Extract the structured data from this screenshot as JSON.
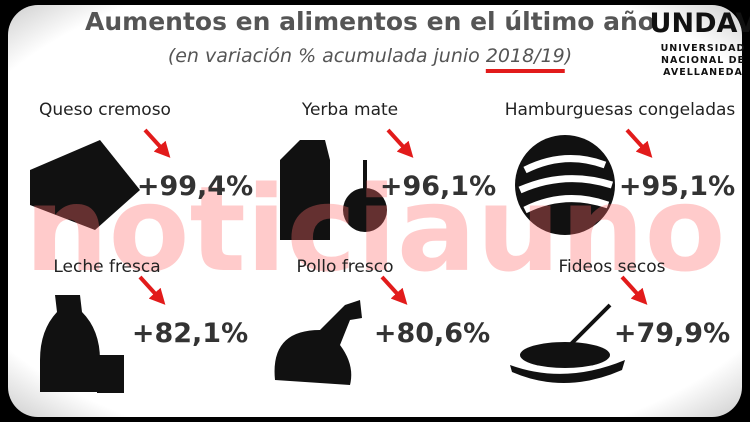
{
  "header": {
    "title": "Aumentos en alimentos en el último año",
    "subtitle": {
      "start": "(en variación % acumulada junio ",
      "highlight": "2018/19",
      "end": ")"
    }
  },
  "logo": {
    "mark": "UNDAV",
    "lines": [
      "UNIVERSIDAD",
      "NACIONAL DE",
      "AVELLANEDA"
    ]
  },
  "items": [
    {
      "label": "Queso cremoso",
      "value": "+99,4%"
    },
    {
      "label": "Yerba mate",
      "value": "+96,1%"
    },
    {
      "label": "Hamburguesas congeladas",
      "value": "+95,1%"
    },
    {
      "label": "Leche fresca",
      "value": "+82,1%"
    },
    {
      "label": "Pollo fresco",
      "value": "+80,6%"
    },
    {
      "label": "Fideos secos",
      "value": "+79,9%"
    }
  ],
  "watermark": "noticiauno"
}
